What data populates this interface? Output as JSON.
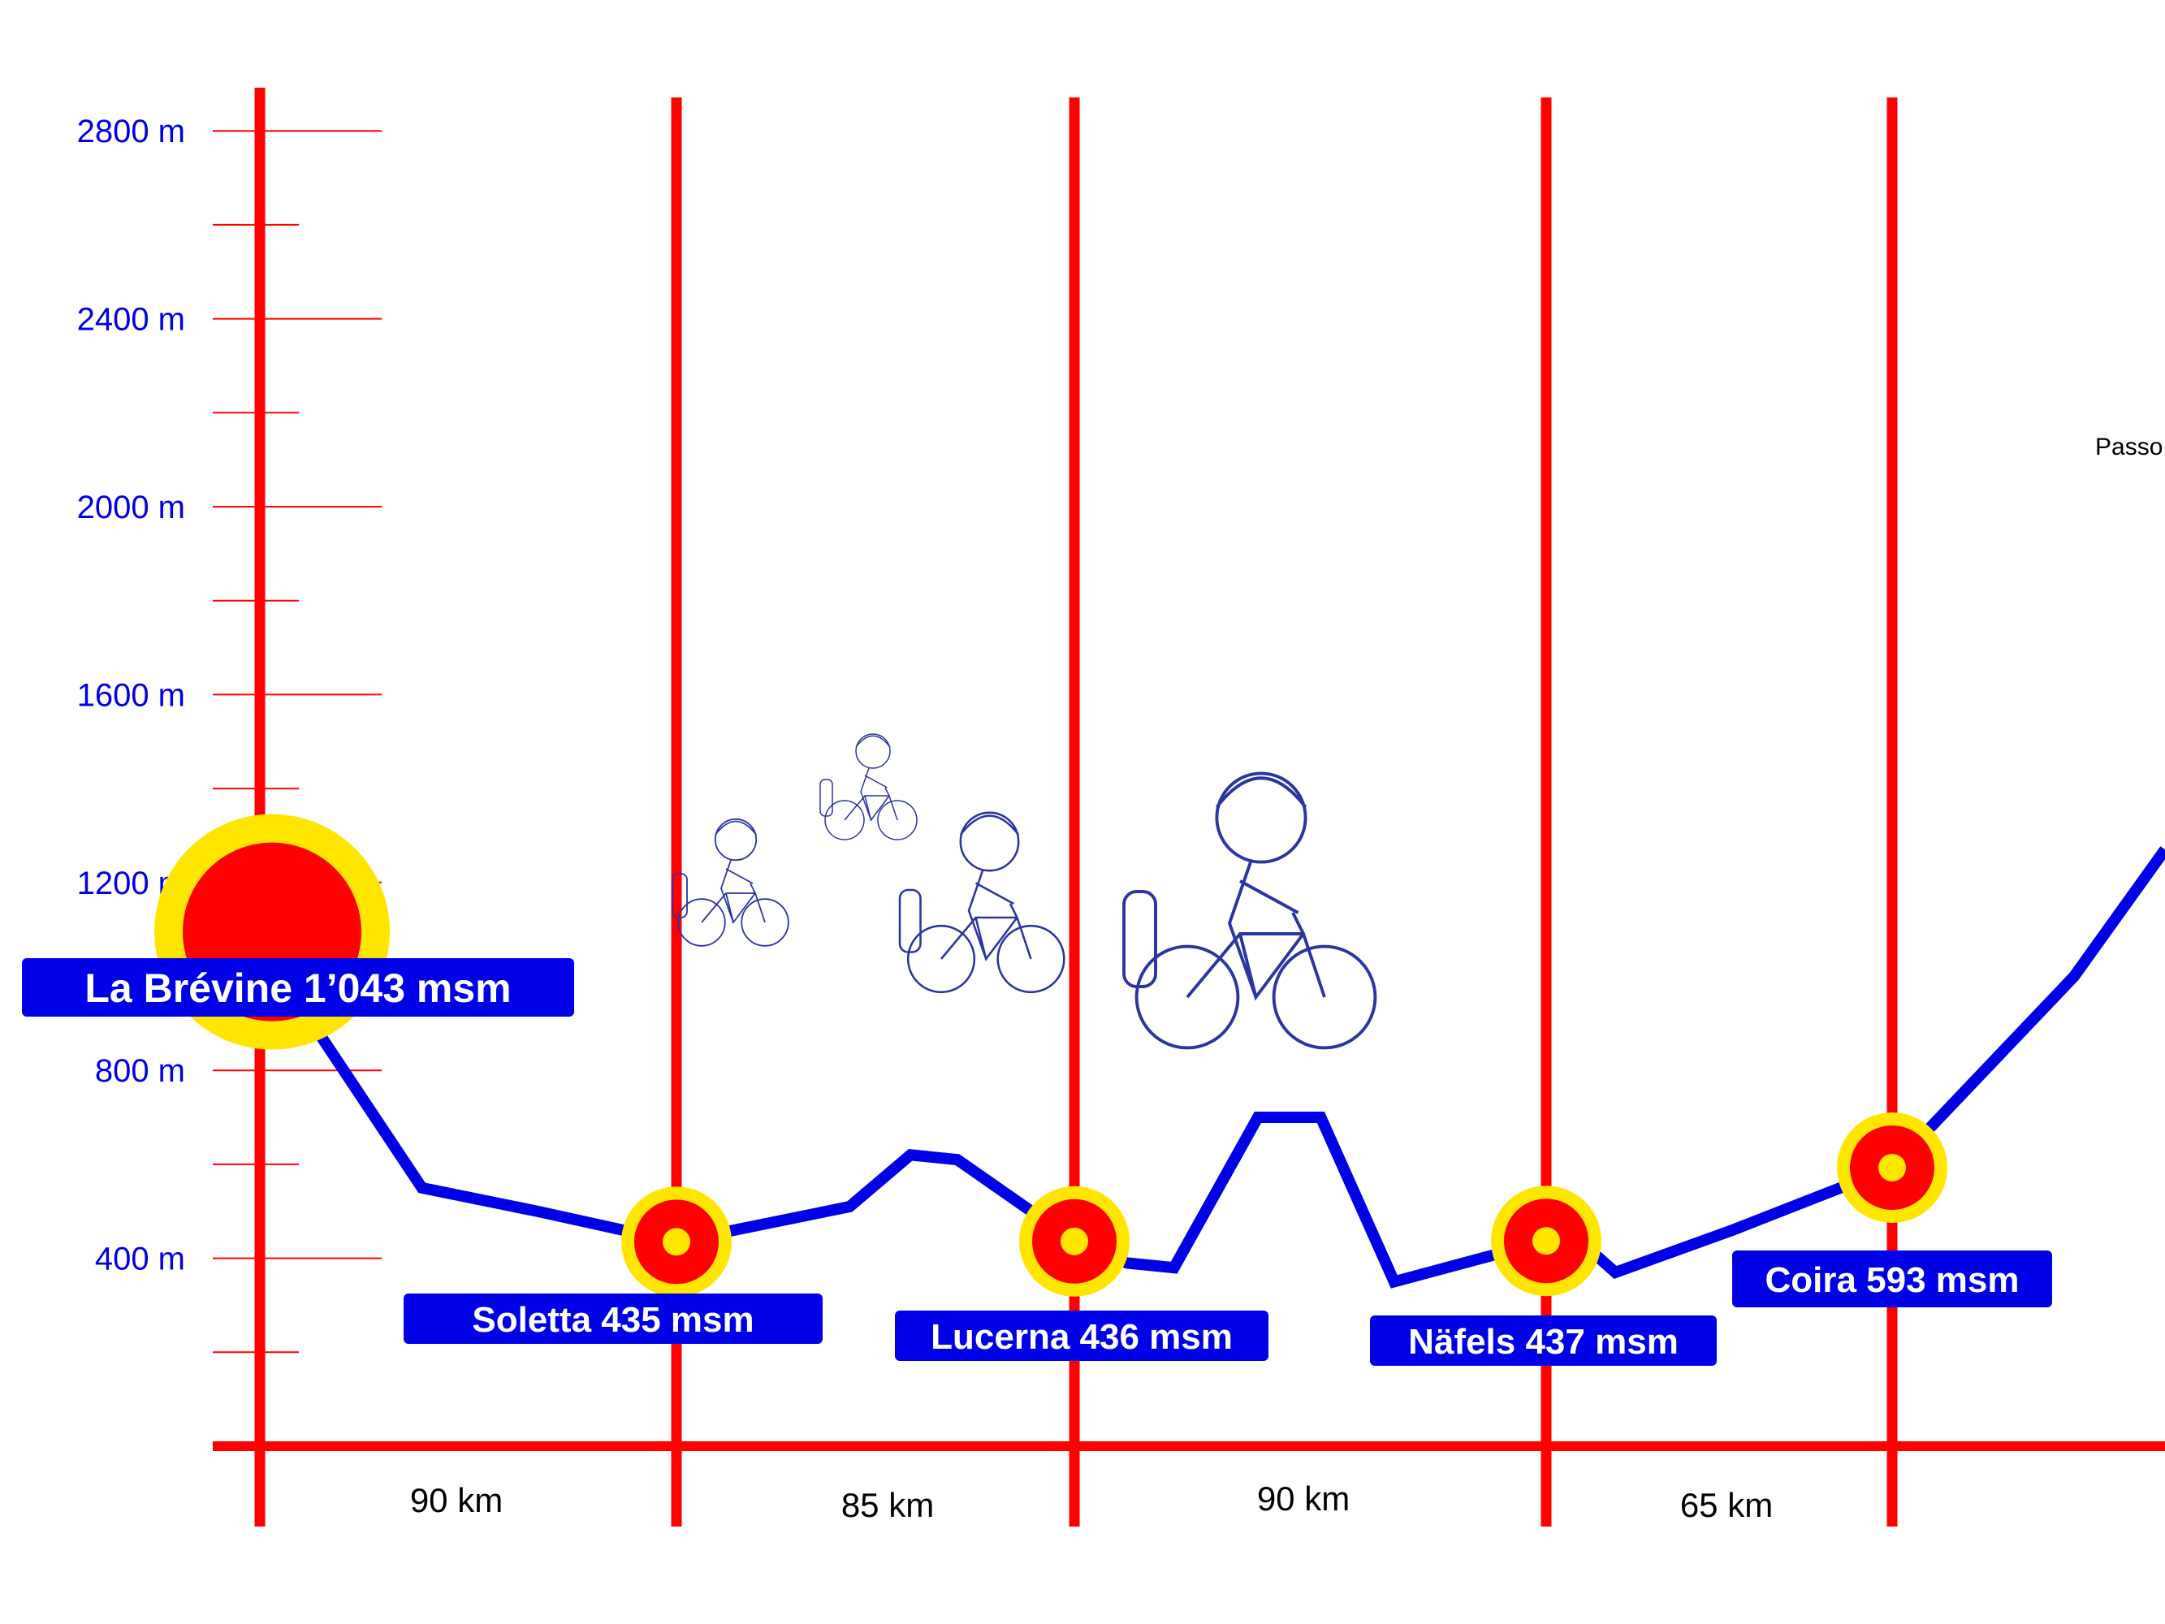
{
  "chart_data": {
    "type": "line",
    "title": "",
    "xlabel": "",
    "ylabel": "",
    "ylim": [
      0,
      3000
    ],
    "y_ticks": [
      {
        "value": 400,
        "label": "400 m"
      },
      {
        "value": 800,
        "label": "800 m"
      },
      {
        "value": 1200,
        "label": "1200 m"
      },
      {
        "value": 1600,
        "label": "1600 m"
      },
      {
        "value": 2000,
        "label": "2000 m"
      },
      {
        "value": 2400,
        "label": "2400 m"
      },
      {
        "value": 2800,
        "label": "2800 m"
      }
    ],
    "segments": [
      {
        "label": "90 km",
        "km": 90
      },
      {
        "label": "85 km",
        "km": 85
      },
      {
        "label": "90 km",
        "km": 90
      },
      {
        "label": "65 km",
        "km": 65
      }
    ],
    "stations": [
      {
        "name": "La Brévine 1’043 msm",
        "km": 0,
        "alt": 1043,
        "major": true
      },
      {
        "name": "Soletta 435 msm",
        "km": 90,
        "alt": 435
      },
      {
        "name": "Lucerna 436 msm",
        "km": 175,
        "alt": 436
      },
      {
        "name": "Näfels 437 msm",
        "km": 265,
        "alt": 437
      },
      {
        "name": "Coira  593 msm",
        "km": 330,
        "alt": 593
      }
    ],
    "profile": {
      "x_km": [
        0,
        10,
        35,
        60,
        90,
        127,
        140,
        150,
        175,
        185,
        194,
        210,
        222,
        236,
        265,
        268,
        278,
        300,
        330,
        370,
        390
      ],
      "y_m": [
        1043,
        920,
        550,
        500,
        435,
        510,
        620,
        610,
        436,
        390,
        380,
        700,
        700,
        350,
        437,
        470,
        370,
        460,
        593,
        1000,
        1270
      ]
    },
    "annotation": "Passo",
    "colors": {
      "grid": "#ff0000",
      "profile": "#0000e6",
      "label_bg": "#0000e6",
      "marker_outer": "#ffe600",
      "marker_inner": "#ff0000"
    }
  }
}
